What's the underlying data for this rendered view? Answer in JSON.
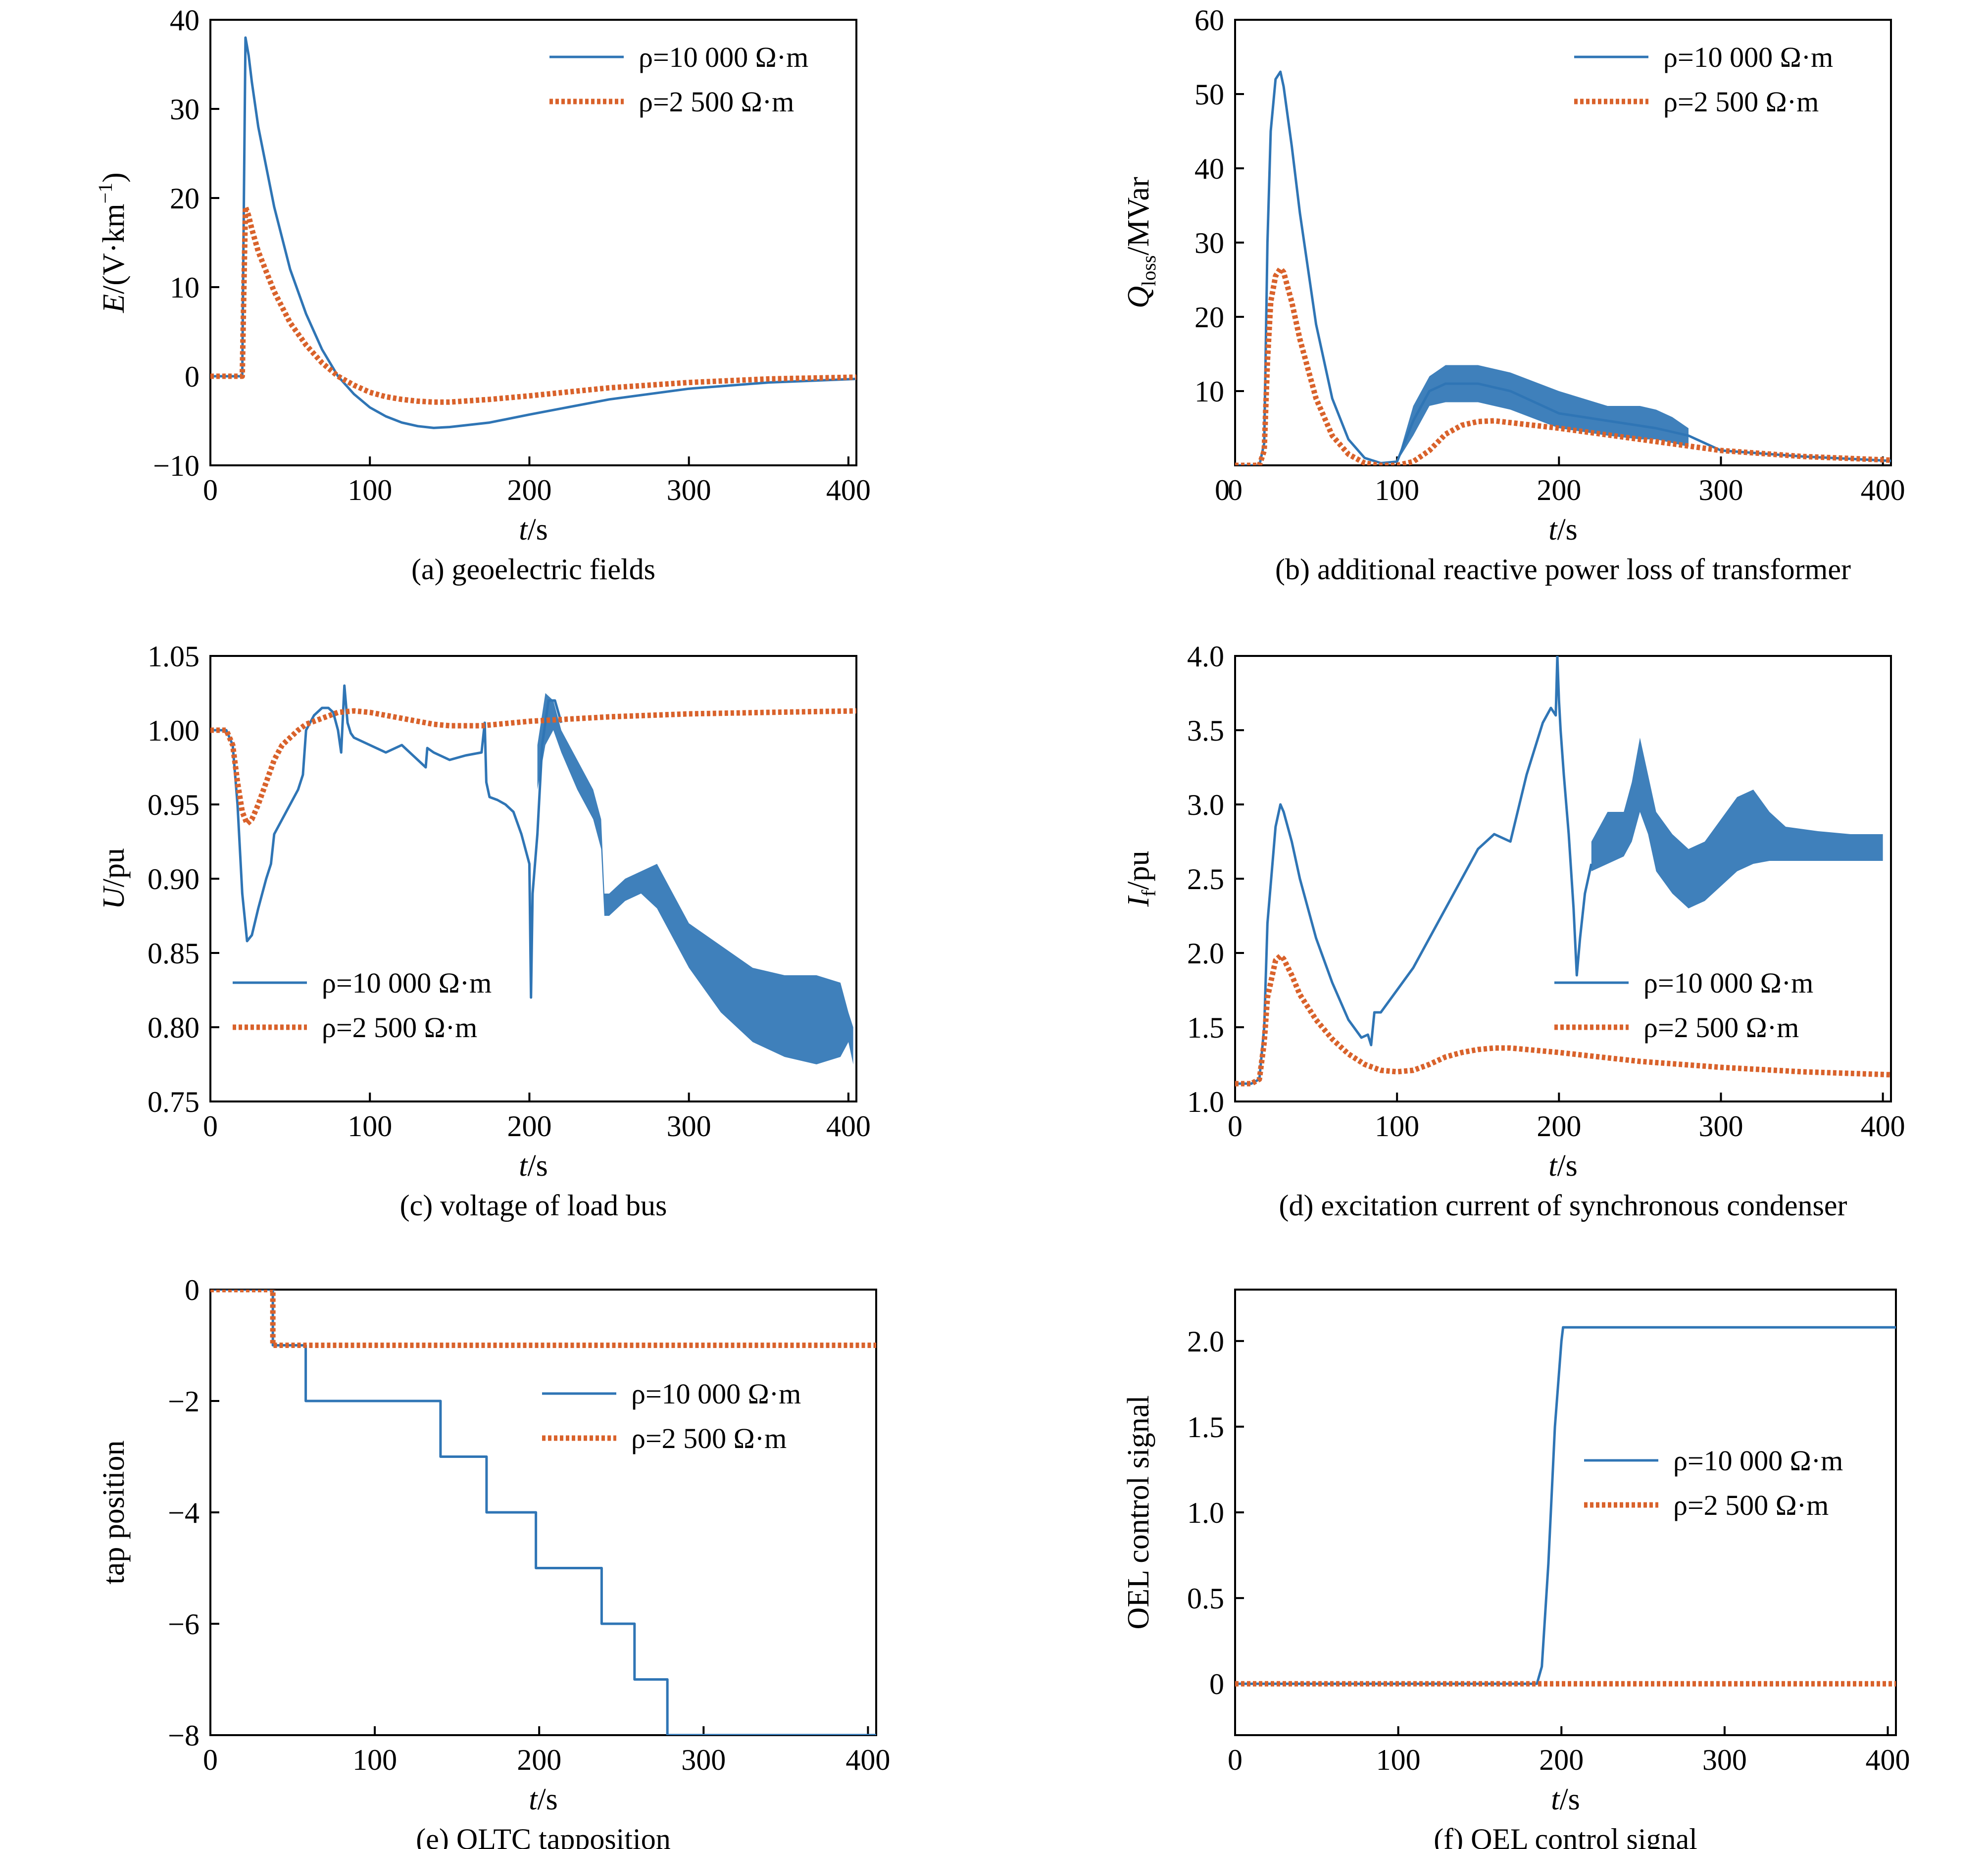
{
  "chart_data": [
    {
      "id": "a",
      "type": "line",
      "caption": "(a) geoelectric fields",
      "xlabel_var": "t",
      "xlabel_unit": "/s",
      "ylabel_var": "E",
      "ylabel_unit": "/(V·km",
      "ylabel_sup": "−1",
      "ylabel_close": ")",
      "xlim": [
        0,
        405
      ],
      "ylim": [
        -10,
        40
      ],
      "xticks": [
        0,
        100,
        200,
        300,
        400
      ],
      "yticks": [
        -10,
        0,
        10,
        20,
        30,
        40
      ],
      "xtick_labels": [
        "0",
        "100",
        "200",
        "300",
        "400"
      ],
      "ytick_labels": [
        "−10",
        "0",
        "10",
        "20",
        "30",
        "40"
      ],
      "legend": {
        "position": "top-right",
        "entries": [
          "ρ=10 000 Ω·m",
          "ρ=2 500 Ω·m"
        ]
      },
      "series": [
        {
          "name": "ρ=10 000 Ω·m",
          "style": "solid",
          "x": [
            0,
            20,
            21,
            22,
            24,
            26,
            30,
            40,
            50,
            60,
            70,
            80,
            90,
            100,
            110,
            120,
            130,
            140,
            150,
            175,
            200,
            250,
            300,
            350,
            405
          ],
          "y": [
            0,
            0,
            20,
            38,
            36,
            33,
            28,
            19,
            12,
            7,
            3,
            0,
            -2,
            -3.5,
            -4.5,
            -5.2,
            -5.6,
            -5.8,
            -5.7,
            -5.2,
            -4.3,
            -2.6,
            -1.4,
            -0.7,
            -0.3
          ]
        },
        {
          "name": "ρ=2 500 Ω·m",
          "style": "dotted",
          "x": [
            0,
            20,
            21,
            22,
            24,
            26,
            30,
            40,
            50,
            60,
            70,
            80,
            90,
            100,
            110,
            120,
            130,
            140,
            150,
            175,
            200,
            250,
            300,
            350,
            405
          ],
          "y": [
            0,
            0,
            10,
            19,
            18,
            16.5,
            14,
            9.5,
            6,
            3.5,
            1.5,
            0,
            -1,
            -1.8,
            -2.3,
            -2.6,
            -2.8,
            -2.9,
            -2.9,
            -2.6,
            -2.2,
            -1.3,
            -0.7,
            -0.3,
            -0.1
          ]
        }
      ]
    },
    {
      "id": "b",
      "type": "line",
      "caption": "(b) additional reactive power loss of transformer",
      "xlabel_var": "t",
      "xlabel_unit": "/s",
      "ylabel_var": "Q",
      "ylabel_sub": "loss",
      "ylabel_unit": "/MVar",
      "xlim": [
        0,
        405
      ],
      "ylim": [
        0,
        60
      ],
      "xticks": [
        0,
        100,
        200,
        300,
        400
      ],
      "yticks": [
        10,
        20,
        30,
        40,
        50,
        60
      ],
      "xtick_labels": [
        "0",
        "100",
        "200",
        "300",
        "400"
      ],
      "ytick_labels": [
        "10",
        "20",
        "30",
        "40",
        "50",
        "60"
      ],
      "xorigin_label": "0",
      "legend": {
        "position": "top-right",
        "entries": [
          "ρ=10 000 Ω·m",
          "ρ=2 500 Ω·m"
        ]
      },
      "series": [
        {
          "name": "ρ=10 000 Ω·m",
          "style": "solid",
          "x": [
            0,
            15,
            18,
            20,
            22,
            25,
            28,
            30,
            35,
            40,
            50,
            60,
            70,
            80,
            90,
            100,
            110,
            120,
            130,
            150,
            170,
            200,
            230,
            260,
            280,
            300,
            350,
            405
          ],
          "y": [
            0,
            0,
            3,
            30,
            45,
            52,
            53,
            51,
            43,
            34,
            19,
            9,
            3.5,
            1,
            0.3,
            0.5,
            6,
            10,
            11,
            11,
            10,
            7,
            6,
            5,
            4,
            2,
            1.2,
            0.6
          ],
          "band_x": [
            100,
            110,
            120,
            130,
            150,
            170,
            200,
            230,
            250,
            260,
            270,
            280
          ],
          "band_lo": [
            0.5,
            4,
            8,
            8.5,
            8.5,
            7.5,
            5,
            4,
            3.5,
            3.5,
            3,
            2.5
          ],
          "band_hi": [
            0.5,
            8,
            12,
            13.5,
            13.5,
            12.5,
            10,
            8,
            8,
            7.5,
            6.5,
            5
          ]
        },
        {
          "name": "ρ=2 500 Ω·m",
          "style": "dotted",
          "x": [
            0,
            15,
            18,
            20,
            22,
            25,
            28,
            30,
            35,
            40,
            50,
            60,
            70,
            80,
            90,
            100,
            110,
            120,
            130,
            140,
            150,
            160,
            200,
            250,
            300,
            350,
            405
          ],
          "y": [
            0,
            0,
            2,
            14,
            22,
            25.5,
            26.5,
            26,
            22,
            17,
            9,
            4,
            1.5,
            0.3,
            0,
            0,
            0.5,
            2,
            4.2,
            5.4,
            5.9,
            6,
            5,
            3.5,
            2,
            1.2,
            0.7
          ]
        }
      ]
    },
    {
      "id": "c",
      "type": "line",
      "caption": "(c) voltage of load bus",
      "xlabel_var": "t",
      "xlabel_unit": "/s",
      "ylabel_var": "U",
      "ylabel_unit": "/pu",
      "xlim": [
        0,
        405
      ],
      "ylim": [
        0.75,
        1.05
      ],
      "xticks": [
        0,
        100,
        200,
        300,
        400
      ],
      "yticks": [
        0.75,
        0.8,
        0.85,
        0.9,
        0.95,
        1.0,
        1.05
      ],
      "xtick_labels": [
        "0",
        "100",
        "200",
        "300",
        "400"
      ],
      "ytick_labels": [
        "0.75",
        "0.80",
        "0.85",
        "0.90",
        "0.95",
        "1.00",
        "1.05"
      ],
      "legend": {
        "position": "bottom-left",
        "entries": [
          "ρ=10 000 Ω·m",
          "ρ=2 500 Ω·m"
        ]
      },
      "series": [
        {
          "name": "ρ=10 000 Ω·m",
          "style": "solid",
          "x": [
            0,
            10,
            14,
            17,
            20,
            23,
            26,
            30,
            35,
            38,
            40,
            45,
            50,
            55,
            58,
            60,
            65,
            70,
            74,
            77,
            80,
            82,
            84,
            86,
            88,
            90,
            100,
            110,
            120,
            135,
            136,
            140,
            150,
            160,
            170,
            172,
            173,
            175,
            180,
            185,
            190,
            195,
            200,
            201,
            202,
            205,
            208,
            212,
            216,
            220
          ],
          "y": [
            1.0,
            1.0,
            0.99,
            0.95,
            0.89,
            0.858,
            0.862,
            0.88,
            0.9,
            0.91,
            0.93,
            0.94,
            0.95,
            0.96,
            0.97,
            1.0,
            1.01,
            1.015,
            1.015,
            1.012,
            1.0,
            0.985,
            1.03,
            1.005,
            0.998,
            0.995,
            0.99,
            0.985,
            0.99,
            0.975,
            0.988,
            0.985,
            0.98,
            0.983,
            0.985,
            1.005,
            0.965,
            0.955,
            0.953,
            0.95,
            0.945,
            0.93,
            0.91,
            0.82,
            0.89,
            0.93,
            0.99,
            1.02,
            1.02,
            1.005
          ],
          "band_x": [
            205,
            210,
            215,
            220,
            230,
            240,
            245,
            247,
            250,
            260,
            270,
            280,
            290,
            300,
            320,
            340,
            360,
            380,
            395,
            400,
            403
          ],
          "band_lo": [
            0.96,
            0.99,
            1.0,
            0.985,
            0.96,
            0.94,
            0.92,
            0.875,
            0.875,
            0.885,
            0.89,
            0.88,
            0.86,
            0.84,
            0.81,
            0.79,
            0.78,
            0.775,
            0.78,
            0.79,
            0.775
          ],
          "band_hi": [
            0.99,
            1.025,
            1.02,
            1.0,
            0.98,
            0.96,
            0.94,
            0.89,
            0.89,
            0.9,
            0.905,
            0.91,
            0.89,
            0.87,
            0.855,
            0.84,
            0.835,
            0.835,
            0.83,
            0.81,
            0.8
          ]
        },
        {
          "name": "ρ=2 500 Ω·m",
          "style": "dotted",
          "x": [
            0,
            10,
            14,
            17,
            20,
            23,
            26,
            30,
            35,
            40,
            45,
            50,
            55,
            60,
            70,
            80,
            90,
            100,
            120,
            140,
            150,
            160,
            170,
            180,
            200,
            250,
            300,
            350,
            405
          ],
          "y": [
            1.0,
            1.0,
            0.99,
            0.965,
            0.945,
            0.937,
            0.94,
            0.95,
            0.965,
            0.98,
            0.99,
            0.995,
            1.0,
            1.004,
            1.008,
            1.012,
            1.013,
            1.012,
            1.008,
            1.004,
            1.003,
            1.003,
            1.003,
            1.004,
            1.006,
            1.009,
            1.011,
            1.012,
            1.013
          ]
        }
      ]
    },
    {
      "id": "d",
      "type": "line",
      "caption": "(d) excitation current of synchronous condenser",
      "xlabel_var": "t",
      "xlabel_unit": "/s",
      "ylabel_var": "I",
      "ylabel_sub": "f",
      "ylabel_unit": "/pu",
      "xlim": [
        0,
        405
      ],
      "ylim": [
        1.0,
        4.0
      ],
      "xticks": [
        0,
        100,
        200,
        300,
        400
      ],
      "yticks": [
        1.0,
        1.5,
        2.0,
        2.5,
        3.0,
        3.5,
        4.0
      ],
      "xtick_labels": [
        "0",
        "100",
        "200",
        "300",
        "400"
      ],
      "ytick_labels": [
        "1.0",
        "1.5",
        "2.0",
        "2.5",
        "3.0",
        "3.5",
        "4.0"
      ],
      "legend": {
        "position": "bottom-right",
        "entries": [
          "ρ=10 000 Ω·m",
          "ρ=2 500 Ω·m"
        ]
      },
      "series": [
        {
          "name": "ρ=10 000 Ω·m",
          "style": "solid",
          "x": [
            0,
            10,
            15,
            18,
            20,
            25,
            28,
            30,
            35,
            40,
            50,
            60,
            70,
            78,
            82,
            84,
            86,
            90,
            100,
            110,
            120,
            130,
            140,
            150,
            160,
            170,
            180,
            190,
            195,
            198,
            199,
            200,
            201,
            203,
            206,
            209,
            211,
            213,
            216,
            220
          ],
          "y": [
            1.12,
            1.12,
            1.15,
            1.5,
            2.2,
            2.85,
            3.0,
            2.95,
            2.75,
            2.5,
            2.1,
            1.8,
            1.55,
            1.43,
            1.45,
            1.38,
            1.6,
            1.6,
            1.75,
            1.9,
            2.1,
            2.3,
            2.5,
            2.7,
            2.8,
            2.75,
            3.2,
            3.55,
            3.65,
            3.6,
            4.0,
            3.7,
            3.5,
            3.2,
            2.8,
            2.3,
            1.85,
            2.1,
            2.4,
            2.6
          ],
          "band_x": [
            220,
            230,
            240,
            245,
            250,
            255,
            260,
            270,
            280,
            290,
            300,
            310,
            320,
            330,
            340,
            360,
            380,
            400
          ],
          "band_lo": [
            2.55,
            2.6,
            2.65,
            2.75,
            2.95,
            2.8,
            2.55,
            2.4,
            2.3,
            2.35,
            2.45,
            2.55,
            2.6,
            2.62,
            2.62,
            2.62,
            2.62,
            2.62
          ],
          "band_hi": [
            2.75,
            2.95,
            2.95,
            3.15,
            3.45,
            3.2,
            2.95,
            2.8,
            2.7,
            2.75,
            2.9,
            3.05,
            3.1,
            2.95,
            2.85,
            2.82,
            2.8,
            2.8
          ]
        },
        {
          "name": "ρ=2 500 Ω·m",
          "style": "dotted",
          "x": [
            0,
            10,
            15,
            18,
            20,
            25,
            28,
            30,
            35,
            40,
            50,
            60,
            70,
            80,
            90,
            100,
            110,
            120,
            130,
            140,
            150,
            160,
            170,
            180,
            200,
            250,
            300,
            350,
            405
          ],
          "y": [
            1.12,
            1.12,
            1.15,
            1.4,
            1.7,
            1.95,
            1.98,
            1.96,
            1.85,
            1.72,
            1.55,
            1.42,
            1.32,
            1.25,
            1.21,
            1.2,
            1.21,
            1.25,
            1.3,
            1.33,
            1.35,
            1.36,
            1.36,
            1.35,
            1.33,
            1.27,
            1.23,
            1.2,
            1.18
          ]
        }
      ]
    },
    {
      "id": "e",
      "type": "line",
      "caption": "(e) OLTC tapposition",
      "xlabel_var": "t",
      "xlabel_unit": "/s",
      "ylabel_plain": "tap position",
      "xlim": [
        0,
        405
      ],
      "ylim": [
        -8,
        0
      ],
      "xticks": [
        0,
        100,
        200,
        300,
        400
      ],
      "yticks": [
        -8,
        -6,
        -4,
        -2,
        0
      ],
      "xtick_labels": [
        "0",
        "100",
        "200",
        "300",
        "400"
      ],
      "ytick_labels": [
        "−8",
        "−6",
        "−4",
        "−2",
        "0"
      ],
      "legend": {
        "position": "center-right",
        "entries": [
          "ρ=10 000 Ω·m",
          "ρ=2 500 Ω·m"
        ]
      },
      "series": [
        {
          "name": "ρ=10 000 Ω·m",
          "style": "solid",
          "x": [
            0,
            38,
            38,
            58,
            58,
            140,
            140,
            168,
            168,
            198,
            198,
            238,
            238,
            258,
            258,
            278,
            278,
            405
          ],
          "y": [
            0,
            0,
            -1,
            -1,
            -2,
            -2,
            -3,
            -3,
            -4,
            -4,
            -5,
            -5,
            -6,
            -6,
            -7,
            -7,
            -8,
            -8
          ]
        },
        {
          "name": "ρ=2 500 Ω·m",
          "style": "dotted",
          "x": [
            0,
            38,
            38,
            405
          ],
          "y": [
            0,
            0,
            -1,
            -1
          ]
        }
      ]
    },
    {
      "id": "f",
      "type": "line",
      "caption": "(f) OEL control signal",
      "xlabel_var": "t",
      "xlabel_unit": "/s",
      "ylabel_plain": "OEL control signal",
      "xlim": [
        0,
        405
      ],
      "ylim": [
        -0.3,
        2.3
      ],
      "xticks": [
        0,
        100,
        200,
        300,
        400
      ],
      "yticks": [
        0,
        0.5,
        1.0,
        1.5,
        2.0
      ],
      "xtick_labels": [
        "0",
        "100",
        "200",
        "300",
        "400"
      ],
      "ytick_labels": [
        "0",
        "0.5",
        "1.0",
        "1.5",
        "2.0"
      ],
      "legend": {
        "position": "center-right",
        "entries": [
          "ρ=10 000 Ω·m",
          "ρ=2 500 Ω·m"
        ]
      },
      "series": [
        {
          "name": "ρ=10 000 Ω·m",
          "style": "solid",
          "x": [
            0,
            185,
            188,
            192,
            196,
            200,
            201,
            405
          ],
          "y": [
            0,
            0,
            0.1,
            0.7,
            1.5,
            2.0,
            2.08,
            2.08
          ]
        },
        {
          "name": "ρ=2 500 Ω·m",
          "style": "dotted",
          "x": [
            0,
            405
          ],
          "y": [
            0,
            0
          ]
        }
      ]
    }
  ]
}
